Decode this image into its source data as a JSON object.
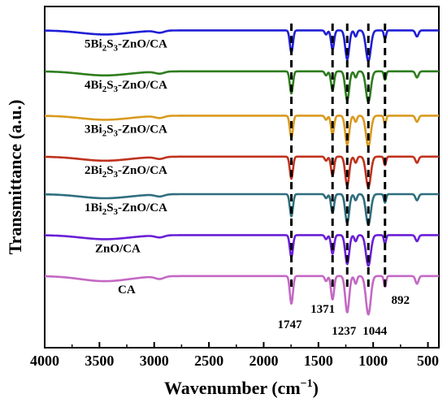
{
  "chart_data": {
    "type": "line",
    "xlabel": "Wavenumber (cm",
    "xlabel_sup": "−1",
    "xlabel_end": ")",
    "ylabel": "Transmittance (a.u.)",
    "xlim": [
      4000,
      400
    ],
    "x_reversed": true,
    "xticks": [
      4000,
      3500,
      3000,
      2500,
      2000,
      1500,
      1000,
      500
    ],
    "y_ticks_shown": false,
    "grid": false,
    "peak_markers": [
      {
        "x": 1747,
        "label": "1747"
      },
      {
        "x": 1371,
        "label": "1371"
      },
      {
        "x": 1237,
        "label": "1237"
      },
      {
        "x": 1044,
        "label": "1044"
      },
      {
        "x": 892,
        "label": "892"
      }
    ],
    "series": [
      {
        "name": "5Bi2S3-ZnO/CA",
        "label_parts": [
          "5Bi",
          "2",
          "S",
          "3",
          "-ZnO/CA"
        ],
        "color": "#1f1fd6",
        "baseline": 0.93,
        "scale": 1.0
      },
      {
        "name": "4Bi2S3-ZnO/CA",
        "label_parts": [
          "4Bi",
          "2",
          "S",
          "3",
          "-ZnO/CA"
        ],
        "color": "#2e7d1e",
        "baseline": 0.81,
        "scale": 1.0
      },
      {
        "name": "3Bi2S3-ZnO/CA",
        "label_parts": [
          "3Bi",
          "2",
          "S",
          "3",
          "-ZnO/CA"
        ],
        "color": "#d99a1f",
        "baseline": 0.68,
        "scale": 1.0
      },
      {
        "name": "2Bi2S3-ZnO/CA",
        "label_parts": [
          "2Bi",
          "2",
          "S",
          "3",
          "-ZnO/CA"
        ],
        "color": "#c0321e",
        "baseline": 0.56,
        "scale": 1.0
      },
      {
        "name": "1Bi2S3-ZnO/CA",
        "label_parts": [
          "1Bi",
          "2",
          "S",
          "3",
          "-ZnO/CA"
        ],
        "color": "#2f6f7e",
        "baseline": 0.45,
        "scale": 1.0
      },
      {
        "name": "ZnO/CA",
        "label_parts": [
          "ZnO/CA"
        ],
        "color": "#6a1fd6",
        "baseline": 0.33,
        "scale": 1.0
      },
      {
        "name": "CA",
        "label_parts": [
          "CA"
        ],
        "color": "#c468c4",
        "baseline": 0.21,
        "scale": 1.25
      }
    ],
    "peak_shape": [
      {
        "x": 1747,
        "depth": 0.065,
        "width": 14
      },
      {
        "x": 1371,
        "depth": 0.055,
        "width": 14
      },
      {
        "x": 1237,
        "depth": 0.085,
        "width": 18
      },
      {
        "x": 1044,
        "depth": 0.09,
        "width": 22
      },
      {
        "x": 1160,
        "depth": 0.018,
        "width": 12
      },
      {
        "x": 892,
        "depth": 0.025,
        "width": 10
      },
      {
        "x": 1430,
        "depth": 0.012,
        "width": 12
      },
      {
        "x": 3450,
        "depth": 0.012,
        "width": 220
      },
      {
        "x": 2950,
        "depth": 0.006,
        "width": 40
      },
      {
        "x": 600,
        "depth": 0.018,
        "width": 14
      }
    ]
  }
}
